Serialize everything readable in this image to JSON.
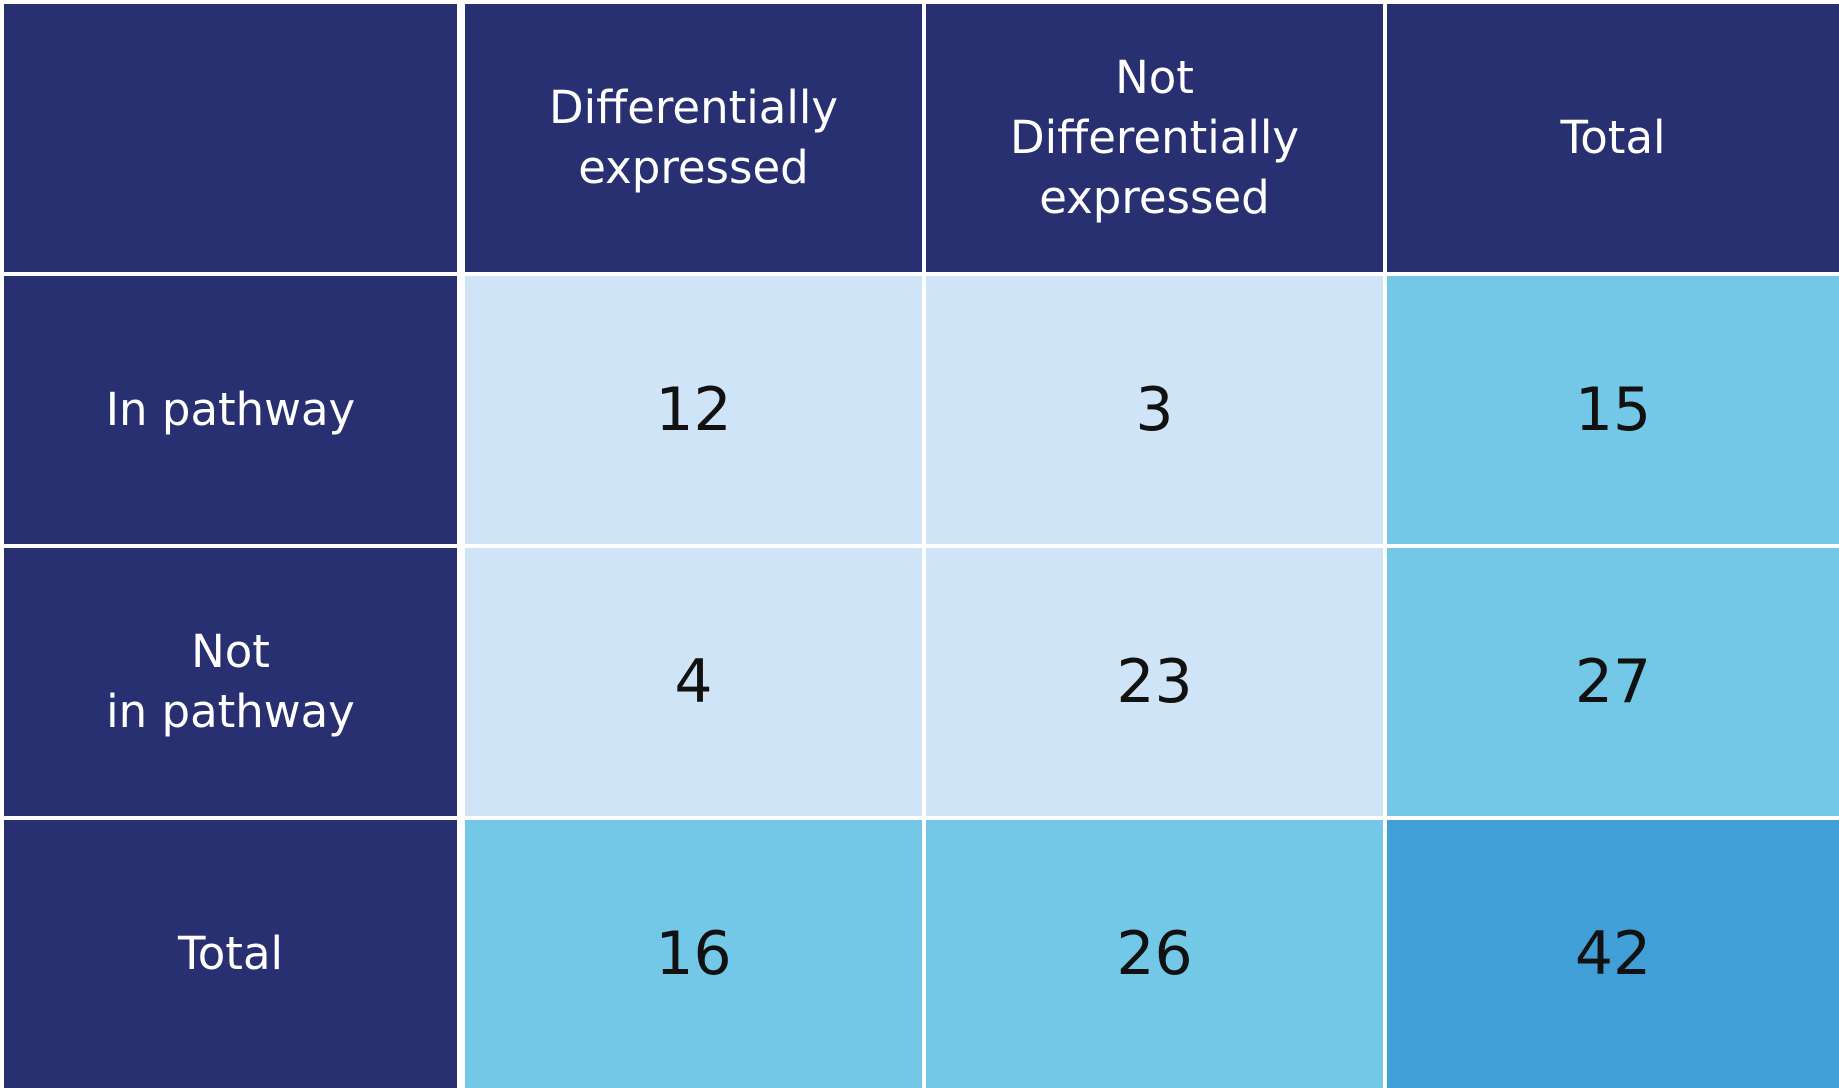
{
  "chart_data": {
    "type": "table",
    "columns": [
      "",
      "Differentially\nexpressed",
      "Not\nDifferentially\nexpressed",
      "Total"
    ],
    "rows": [
      {
        "label": "In pathway",
        "values": [
          "12",
          "3",
          "15"
        ]
      },
      {
        "label": "Not\nin pathway",
        "values": [
          "4",
          "23",
          "27"
        ]
      },
      {
        "label": "Total",
        "values": [
          "16",
          "26",
          "42"
        ]
      }
    ]
  },
  "colors": {
    "header": "#283071",
    "cell_light": "#cfe5f7",
    "cell_total": "#72c8e6",
    "cell_grand_total": "#409fd7"
  }
}
